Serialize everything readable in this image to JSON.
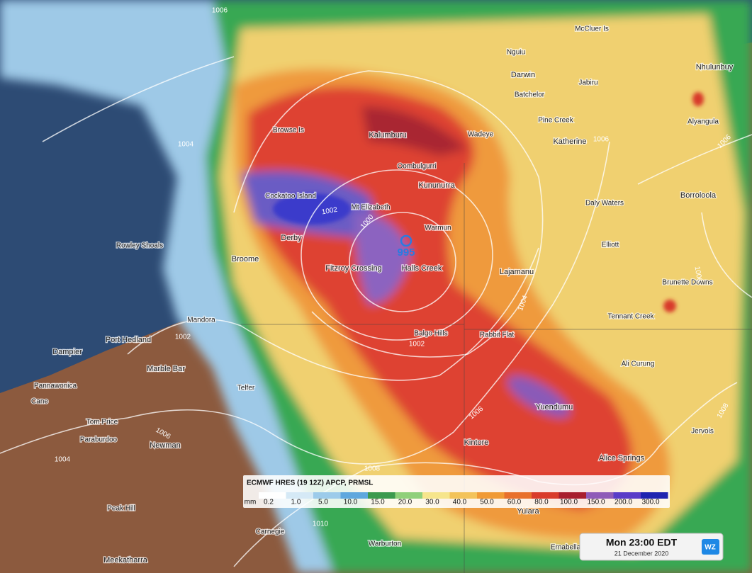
{
  "legend": {
    "title": "ECMWF HRES (19 12Z) APCP, PRMSL",
    "unit": "mm",
    "levels": [
      "0.2",
      "1.0",
      "5.0",
      "10.0",
      "15.0",
      "20.0",
      "30.0",
      "40.0",
      "50.0",
      "60.0",
      "80.0",
      "100.0",
      "150.0",
      "200.0",
      "300.0"
    ]
  },
  "low": {
    "pressure": "995"
  },
  "places": [
    "McCluer Is",
    "Nguiu",
    "Darwin",
    "Jabiru",
    "Nhulunbuy",
    "Batchelor",
    "Pine Creek",
    "Alyangula",
    "Browse Is",
    "Kalumburu",
    "Wadeye",
    "Katherine",
    "Oombulgurri",
    "Kununurra",
    "Borroloola",
    "Cockatoo Island",
    "Mt Elizabeth",
    "Daly Waters",
    "Warmun",
    "Derby",
    "Elliott",
    "Rowley Shoals",
    "Broome",
    "Fitzroy Crossing",
    "Halls Creek",
    "Lajamanu",
    "Brunette Downs",
    "Tennant Creek",
    "Mandora",
    "Balgo Hills",
    "Rabbit Flat",
    "Port Hedland",
    "Dampier",
    "Marble Bar",
    "Ali Curung",
    "Pannawonica",
    "Telfer",
    "Cane",
    "Yuendumu",
    "Tom Price",
    "Paraburdoo",
    "Jervois",
    "Newman",
    "Kintore",
    "Alice Springs",
    "Peak Hill",
    "Yulara",
    "Carnegie",
    "Warburton",
    "Meekatharra",
    "Ernabella"
  ],
  "isobar_labels": [
    "1006",
    "1004",
    "1002",
    "1000",
    "1002",
    "1002",
    "1004",
    "1006",
    "1006",
    "1004",
    "1008",
    "1010",
    "1008",
    "1006",
    "1006",
    "1006"
  ],
  "timestamp": {
    "time": "Mon 23:00 EDT",
    "date": "21 December 2020"
  },
  "logo": "WZ"
}
